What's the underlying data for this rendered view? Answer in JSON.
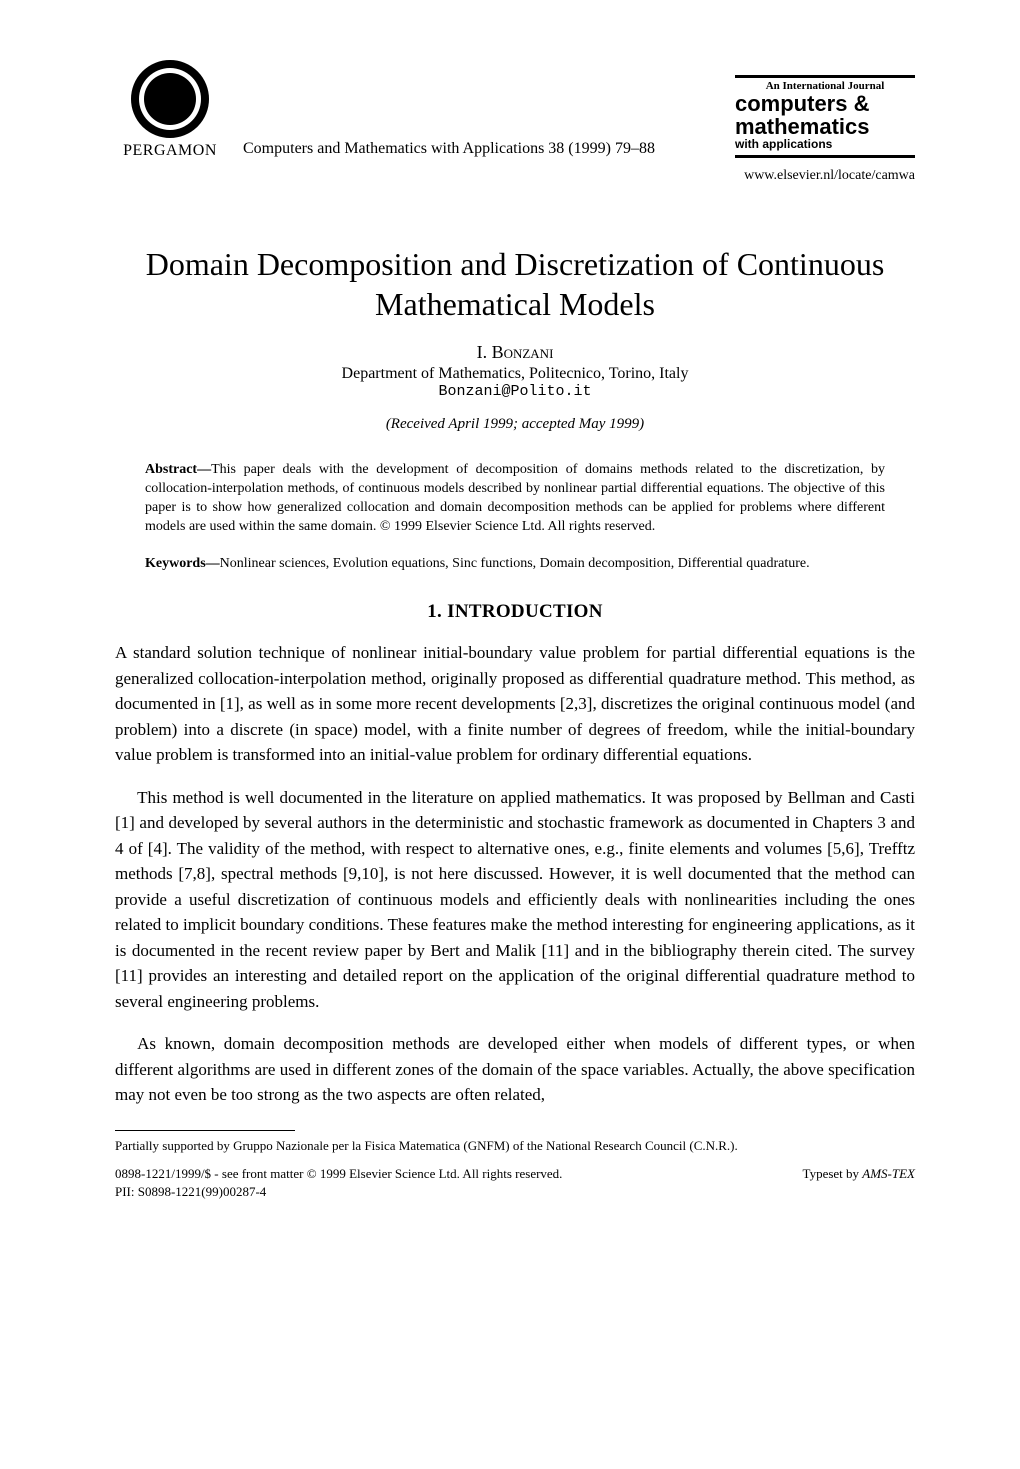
{
  "header": {
    "publisher": "PERGAMON",
    "citation": "Computers and Mathematics with Applications 38 (1999) 79–88",
    "journal_banner": {
      "line1": "An International Journal",
      "line2": "computers &",
      "line3": "mathematics",
      "line4": "with applications"
    },
    "url": "www.elsevier.nl/locate/camwa"
  },
  "title": "Domain Decomposition and Discretization of Continuous Mathematical Models",
  "author": "I. Bonzani",
  "affiliation": "Department of Mathematics, Politecnico, Torino, Italy",
  "email": "Bonzani@Polito.it",
  "received": "(Received April 1999; accepted May 1999)",
  "abstract": {
    "label": "Abstract—",
    "text": "This paper deals with the development of decomposition of domains methods related to the discretization, by collocation-interpolation methods, of continuous models described by nonlinear partial differential equations. The objective of this paper is to show how generalized collocation and domain decomposition methods can be applied for problems where different models are used within the same domain. © 1999  Elsevier Science Ltd. All rights reserved."
  },
  "keywords": {
    "label": "Keywords—",
    "text": "Nonlinear sciences, Evolution equations, Sinc functions, Domain decomposition, Differential quadrature."
  },
  "section_heading": "1.  INTRODUCTION",
  "body": {
    "p1": "A standard solution technique of nonlinear initial-boundary value problem for partial differential equations is the generalized collocation-interpolation method, originally proposed as differential quadrature method. This method, as documented in [1], as well as in some more recent developments [2,3], discretizes the original continuous model (and problem) into a discrete (in space) model, with a finite number of degrees of freedom, while the initial-boundary value problem is transformed into an initial-value problem for ordinary differential equations.",
    "p2": "This method is well documented in the literature on applied mathematics. It was proposed by Bellman and Casti [1] and developed by several authors in the deterministic and stochastic framework as documented in Chapters 3 and 4 of [4]. The validity of the method, with respect to alternative ones, e.g., finite elements and volumes [5,6], Trefftz methods [7,8], spectral methods [9,10], is not here discussed. However, it is well documented that the method can provide a useful discretization of continuous models and efficiently deals with nonlinearities including the ones related to implicit boundary conditions. These features make the method interesting for engineering applications, as it is documented in the recent review paper by Bert and Malik [11] and in the bibliography therein cited. The survey [11] provides an interesting and detailed report on the application of the original differential quadrature method to several engineering problems.",
    "p3": "As known, domain decomposition methods are developed either when models of different types, or when different algorithms are used in different zones of the domain of the space variables. Actually, the above specification may not even be too strong as the two aspects are often related,"
  },
  "footnote": "Partially supported by Gruppo Nazionale per la Fisica Matematica (GNFM) of the National Research Council (C.N.R.).",
  "bottom": {
    "left": "0898-1221/1999/$  - see front matter © 1999 Elsevier Science Ltd. All rights reserved.",
    "right_prefix": "Typeset by ",
    "right_tex": "AMS-TEX",
    "pii": "PII: S0898-1221(99)00287-4"
  },
  "style": {
    "page_bg": "#ffffff",
    "text_color": "#000000",
    "body_fontsize_pt": 17,
    "title_fontsize_pt": 32,
    "abstract_fontsize_pt": 14,
    "footnote_fontsize_pt": 13
  }
}
